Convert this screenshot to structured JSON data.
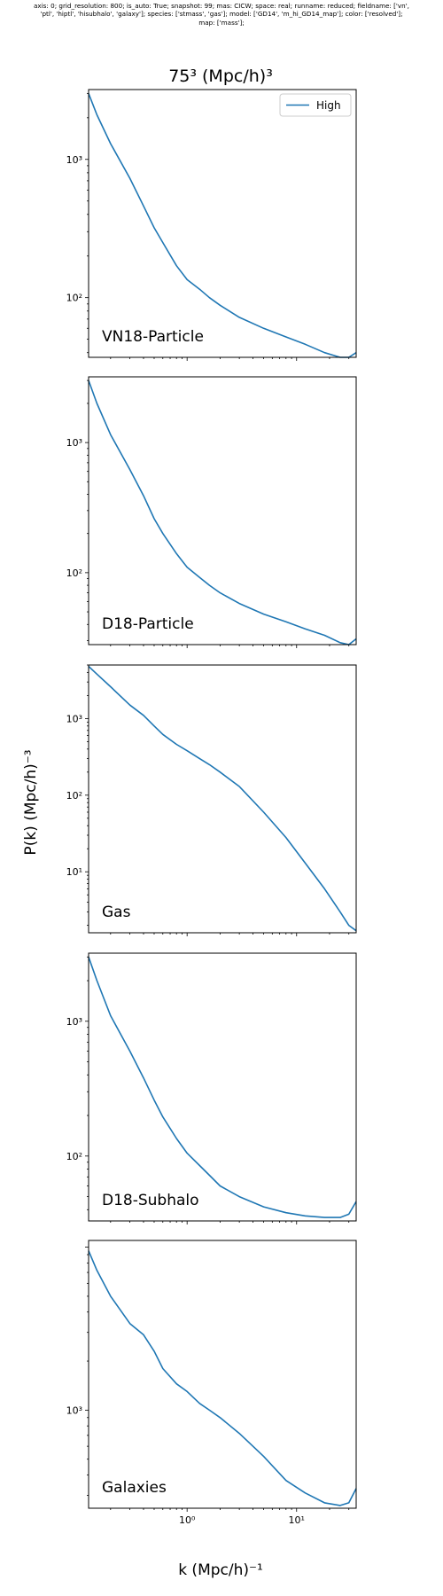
{
  "meta_lines": [
    "axis: 0; grid_resolution: 800; is_auto: True; snapshot: 99; mas: CICW; space: real; runname: reduced; fieldname: ['vn',",
    "'ptl', 'hiptl', 'hisubhalo', 'galaxy']; species: ['stmass', 'gas']; model: ['GD14', 'm_hi_GD14_map']; color: ['resolved'];",
    "map: ['mass'];"
  ],
  "figure_title": "75³ (Mpc/h)³",
  "ylabel": "P(k) (Mpc/h)⁻³",
  "xlabel": "k (Mpc/h)⁻¹",
  "colors": {
    "series": "#1f77b4",
    "axis": "#000000"
  },
  "chart_data": [
    {
      "type": "line",
      "title": "VN18-Particle",
      "xscale": "log",
      "yscale": "log",
      "xlim": [
        0.126,
        35
      ],
      "ylim": [
        37,
        3200
      ],
      "xtick_labels": [],
      "ytick_labels": [
        "10²",
        "10³"
      ],
      "legend": {
        "entries": [
          "High"
        ],
        "placement": "top-right"
      },
      "series": [
        {
          "name": "High",
          "x": [
            0.126,
            0.15,
            0.2,
            0.3,
            0.4,
            0.5,
            0.6,
            0.8,
            1.0,
            1.3,
            1.6,
            2,
            3,
            5,
            8,
            12,
            18,
            25,
            30,
            35
          ],
          "y": [
            3000,
            2100,
            1300,
            730,
            460,
            320,
            250,
            170,
            135,
            115,
            100,
            88,
            72,
            60,
            52,
            46,
            40,
            37,
            37,
            40
          ]
        }
      ]
    },
    {
      "type": "line",
      "title": "D18-Particle",
      "xscale": "log",
      "yscale": "log",
      "xlim": [
        0.126,
        35
      ],
      "ylim": [
        28,
        3200
      ],
      "xtick_labels": [],
      "ytick_labels": [
        "10²",
        "10³"
      ],
      "series": [
        {
          "x": [
            0.126,
            0.15,
            0.2,
            0.3,
            0.4,
            0.5,
            0.6,
            0.8,
            1.0,
            1.3,
            1.6,
            2,
            3,
            5,
            8,
            12,
            18,
            25,
            30,
            35
          ],
          "y": [
            3000,
            2000,
            1150,
            620,
            390,
            260,
            200,
            140,
            110,
            92,
            80,
            70,
            58,
            48,
            42,
            37,
            33,
            29,
            28,
            31
          ]
        }
      ]
    },
    {
      "type": "line",
      "title": "Gas",
      "xscale": "log",
      "yscale": "log",
      "xlim": [
        0.126,
        35
      ],
      "ylim": [
        1.6,
        5000
      ],
      "xtick_labels": [],
      "ytick_labels": [
        "10¹",
        "10²",
        "10³"
      ],
      "series": [
        {
          "x": [
            0.126,
            0.15,
            0.2,
            0.3,
            0.4,
            0.5,
            0.6,
            0.8,
            1.0,
            1.3,
            1.6,
            2,
            3,
            5,
            8,
            12,
            18,
            25,
            30,
            35
          ],
          "y": [
            4800,
            3800,
            2600,
            1500,
            1100,
            800,
            620,
            460,
            380,
            300,
            250,
            200,
            130,
            60,
            28,
            13,
            6,
            3,
            2,
            1.7
          ]
        }
      ]
    },
    {
      "type": "line",
      "title": "D18-Subhalo",
      "xscale": "log",
      "yscale": "log",
      "xlim": [
        0.126,
        35
      ],
      "ylim": [
        33,
        3200
      ],
      "xtick_labels": [],
      "ytick_labels": [
        "10²",
        "10³"
      ],
      "series": [
        {
          "x": [
            0.126,
            0.15,
            0.2,
            0.3,
            0.4,
            0.5,
            0.6,
            0.8,
            1.0,
            1.3,
            1.6,
            2,
            3,
            5,
            8,
            12,
            18,
            25,
            30,
            35
          ],
          "y": [
            3000,
            2000,
            1100,
            600,
            380,
            260,
            195,
            135,
            105,
            85,
            72,
            60,
            50,
            42,
            38,
            36,
            35,
            35,
            37,
            46
          ]
        }
      ]
    },
    {
      "type": "line",
      "title": "Galaxies",
      "xscale": "log",
      "yscale": "log",
      "xlim": [
        0.126,
        35
      ],
      "ylim": [
        250,
        11000
      ],
      "xtick_labels": [
        "10⁰",
        "10¹"
      ],
      "ytick_labels": [
        "10³"
      ],
      "series": [
        {
          "x": [
            0.126,
            0.15,
            0.2,
            0.3,
            0.4,
            0.5,
            0.6,
            0.8,
            1.0,
            1.3,
            1.6,
            2,
            3,
            5,
            8,
            12,
            18,
            25,
            30,
            35
          ],
          "y": [
            9500,
            7200,
            5000,
            3400,
            2900,
            2300,
            1800,
            1450,
            1300,
            1100,
            1000,
            900,
            720,
            520,
            370,
            310,
            270,
            260,
            270,
            330
          ]
        }
      ]
    }
  ]
}
